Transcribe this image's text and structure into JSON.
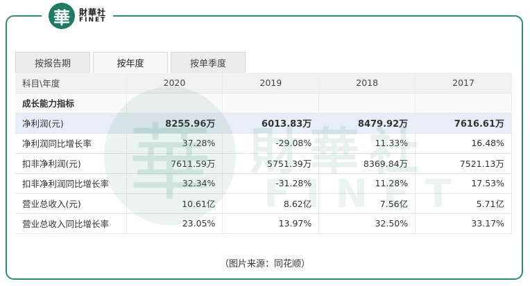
{
  "brand": {
    "logo_char": "華",
    "name_cn": "財華社",
    "name_en": "FINET"
  },
  "tabs": [
    {
      "label": "按报告期",
      "active": false
    },
    {
      "label": "按年度",
      "active": true
    },
    {
      "label": "按单季度",
      "active": false
    }
  ],
  "table": {
    "header": {
      "label": "科目\\年度",
      "years": [
        "2020",
        "2019",
        "2018",
        "2017"
      ]
    },
    "section": "成长能力指标",
    "rows": [
      {
        "label": "净利润(元)",
        "values": [
          "8255.96万",
          "6013.83万",
          "8479.92万",
          "7616.61万"
        ],
        "highlight": true
      },
      {
        "label": "净利润同比增长率",
        "values": [
          "37.28%",
          "-29.08%",
          "11.33%",
          "16.48%"
        ]
      },
      {
        "label": "扣非净利润(元)",
        "values": [
          "7611.59万",
          "5751.39万",
          "8369.84万",
          "7521.13万"
        ]
      },
      {
        "label": "扣非净利润同比增长率",
        "values": [
          "32.34%",
          "-31.28%",
          "11.28%",
          "17.53%"
        ]
      },
      {
        "label": "营业总收入(元)",
        "values": [
          "10.61亿",
          "8.62亿",
          "7.56亿",
          "5.71亿"
        ]
      },
      {
        "label": "营业总收入同比增长率",
        "values": [
          "23.05%",
          "13.97%",
          "32.50%",
          "33.17%"
        ]
      }
    ]
  },
  "caption": "（图片来源：同花顺）"
}
